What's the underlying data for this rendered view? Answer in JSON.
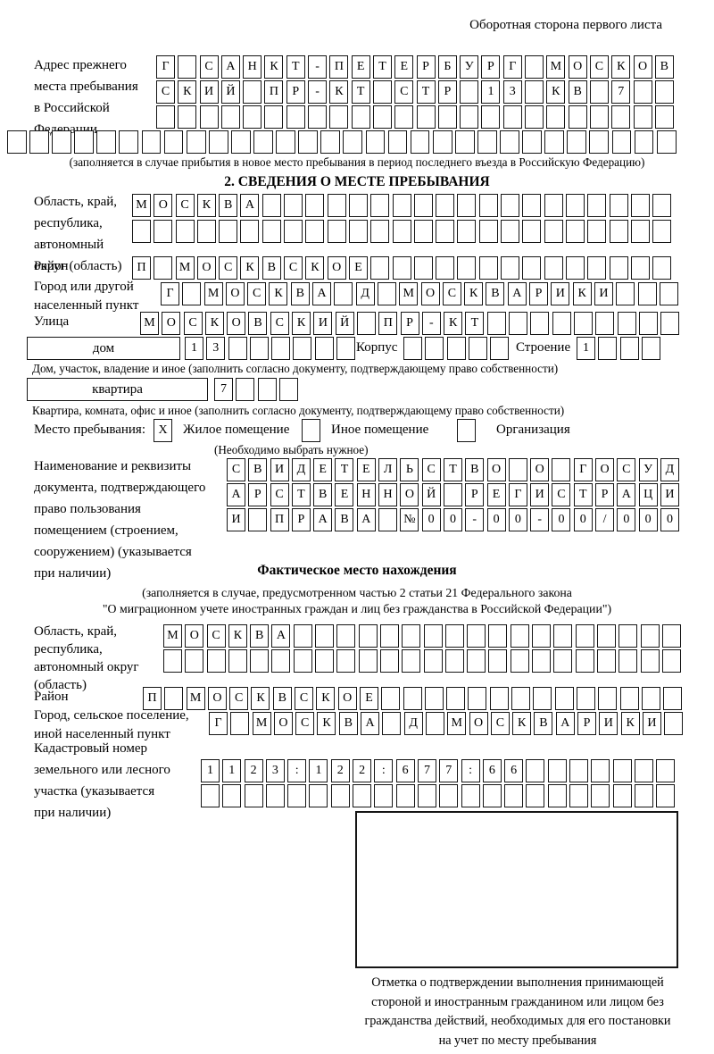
{
  "page": {
    "back_note": "Оборотная сторона первого листа"
  },
  "prev": {
    "label": "Адрес прежнего\nместа пребывания\nв Российской\nФедерации",
    "row1": [
      "Г",
      "",
      "С",
      "А",
      "Н",
      "К",
      "Т",
      "-",
      "П",
      "Е",
      "Т",
      "Е",
      "Р",
      "Б",
      "У",
      "Р",
      "Г",
      "",
      "М",
      "О",
      "С",
      "К",
      "О",
      "В"
    ],
    "row2": [
      "С",
      "К",
      "И",
      "Й",
      "",
      "П",
      "Р",
      "-",
      "К",
      "Т",
      "",
      "С",
      "Т",
      "Р",
      "",
      "1",
      "3",
      "",
      "К",
      "В",
      "",
      "7",
      "",
      ""
    ],
    "row3": 24,
    "row4": 30,
    "note": "(заполняется в случае прибытия в новое место пребывания в период последнего въезда в Российскую Федерацию)"
  },
  "s2": {
    "title": "2. СВЕДЕНИЯ О МЕСТЕ ПРЕБЫВАНИЯ",
    "oblast_label": "Область, край,\nреспублика,\nавтономный\nокруг (область)",
    "oblast_row1": [
      "М",
      "О",
      "С",
      "К",
      "В",
      "А",
      "",
      "",
      "",
      "",
      "",
      "",
      "",
      "",
      "",
      "",
      "",
      "",
      "",
      "",
      "",
      "",
      "",
      "",
      ""
    ],
    "oblast_row2": 25,
    "raion_label": "Район",
    "raion_row": [
      "П",
      "",
      "М",
      "О",
      "С",
      "К",
      "В",
      "С",
      "К",
      "О",
      "Е",
      "",
      "",
      "",
      "",
      "",
      "",
      "",
      "",
      "",
      "",
      "",
      "",
      "",
      ""
    ],
    "city_label": "Город или другой\nнаселенный пункт",
    "city_row": [
      "Г",
      "",
      "М",
      "О",
      "С",
      "К",
      "В",
      "А",
      "",
      "Д",
      "",
      "М",
      "О",
      "С",
      "К",
      "В",
      "А",
      "Р",
      "И",
      "К",
      "И",
      "",
      "",
      ""
    ],
    "street_label": "Улица",
    "street_row": [
      "М",
      "О",
      "С",
      "К",
      "О",
      "В",
      "С",
      "К",
      "И",
      "Й",
      "",
      "П",
      "Р",
      "-",
      "К",
      "Т",
      "",
      "",
      "",
      "",
      "",
      "",
      "",
      "",
      ""
    ],
    "dom_label": "дом",
    "dom_cells": [
      "1",
      "3",
      "",
      "",
      "",
      "",
      "",
      ""
    ],
    "korpus_label": "Корпус",
    "korpus_cells": 5,
    "stroenie_label": "Строение",
    "stroenie_cells": [
      "1",
      "",
      "",
      ""
    ],
    "dom_note": "Дом, участок, владение и иное (заполнить согласно документу, подтверждающему право собственности)",
    "kvartira_label": "квартира",
    "kvartira_cells": [
      "7",
      "",
      "",
      ""
    ],
    "kvartira_note": "Квартира, комната, офис и иное (заполнить согласно документу, подтверждающему право собственности)",
    "mesto_label": "Место пребывания:",
    "opt1": {
      "mark": "X",
      "label": "Жилое помещение"
    },
    "opt2": {
      "mark": "",
      "label": "Иное помещение"
    },
    "opt3": {
      "mark": "",
      "label": "Организация"
    },
    "mesto_note": "(Необходимо выбрать нужное)",
    "doc_label": "Наименование и реквизиты\nдокумента, подтверждающего\nправо пользования\nпомещением (строением,\nсооружением) (указывается\nпри наличии)",
    "doc_row1": [
      "С",
      "В",
      "И",
      "Д",
      "Е",
      "Т",
      "Е",
      "Л",
      "Ь",
      "С",
      "Т",
      "В",
      "О",
      "",
      "О",
      "",
      "Г",
      "О",
      "С",
      "У",
      "Д"
    ],
    "doc_row2": [
      "А",
      "Р",
      "С",
      "Т",
      "В",
      "Е",
      "Н",
      "Н",
      "О",
      "Й",
      "",
      "Р",
      "Е",
      "Г",
      "И",
      "С",
      "Т",
      "Р",
      "А",
      "Ц",
      "И"
    ],
    "doc_row3": [
      "И",
      "",
      "П",
      "Р",
      "А",
      "В",
      "А",
      "",
      "№",
      "0",
      "0",
      "-",
      "0",
      "0",
      "-",
      "0",
      "0",
      "/",
      "0",
      "0",
      "0"
    ]
  },
  "fact": {
    "title": "Фактическое место нахождения",
    "note1": "(заполняется в случае, предусмотренном частью 2 статьи 21 Федерального закона",
    "note2": "\"О миграционном учете иностранных граждан и лиц без гражданства в Российской Федерации\")",
    "oblast_label": "Область, край,\nреспублика,\nавтономный округ\n(область)",
    "oblast_row1": [
      "М",
      "О",
      "С",
      "К",
      "В",
      "А",
      "",
      "",
      "",
      "",
      "",
      "",
      "",
      "",
      "",
      "",
      "",
      "",
      "",
      "",
      "",
      "",
      "",
      ""
    ],
    "oblast_row2": 24,
    "raion_label": "Район",
    "raion_row": [
      "П",
      "",
      "М",
      "О",
      "С",
      "К",
      "В",
      "С",
      "К",
      "О",
      "Е",
      "",
      "",
      "",
      "",
      "",
      "",
      "",
      "",
      "",
      "",
      "",
      "",
      "",
      ""
    ],
    "city_label": "Город, сельское поселение,\nиной населенный пункт",
    "city_row": [
      "Г",
      "",
      "М",
      "О",
      "С",
      "К",
      "В",
      "А",
      "",
      "Д",
      "",
      "М",
      "О",
      "С",
      "К",
      "В",
      "А",
      "Р",
      "И",
      "К",
      "И",
      ""
    ],
    "kadastr_label": "Кадастровый номер\nземельного или лесного\nучастка (указывается\nпри наличии)",
    "kadastr_row1": [
      "1",
      "1",
      "2",
      "3",
      ":",
      "1",
      "2",
      "2",
      ":",
      "6",
      "7",
      "7",
      ":",
      "6",
      "6",
      "",
      "",
      "",
      "",
      "",
      "",
      ""
    ],
    "kadastr_row2": 22,
    "stamp_caption": "Отметка о подтверждении выполнения принимающей\nстороной и иностранным гражданином или лицом без\nгражданства действий, необходимых для его постановки\nна учет по месту пребывания"
  }
}
